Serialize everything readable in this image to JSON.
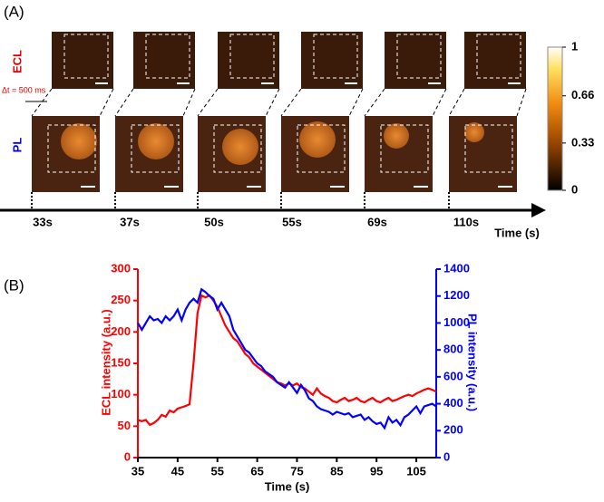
{
  "panel_a": {
    "label": "(A)",
    "row_top": "ECL",
    "row_bottom": "PL",
    "interval": "Δt = 500 ms",
    "times": [
      "33s",
      "37s",
      "50s",
      "55s",
      "69s",
      "110s"
    ],
    "time_axis": "Time (s)",
    "colorbar": {
      "ticks": [
        1,
        0.66,
        0.33,
        0
      ]
    }
  },
  "chart_data": {
    "type": "line",
    "panel_label": "(B)",
    "x_label": "Time (s)",
    "y_label": "ECL intensity (a.u.)",
    "y2_label": "PL intensity (a.u.)",
    "x": [
      35,
      36,
      37,
      38,
      39,
      40,
      41,
      42,
      43,
      44,
      45,
      46,
      47,
      48,
      49,
      50,
      51,
      52,
      53,
      54,
      55,
      56,
      57,
      58,
      59,
      60,
      61,
      62,
      63,
      64,
      65,
      66,
      67,
      68,
      69,
      70,
      71,
      72,
      73,
      74,
      75,
      76,
      77,
      78,
      79,
      80,
      81,
      82,
      83,
      84,
      85,
      86,
      87,
      88,
      89,
      90,
      91,
      92,
      93,
      94,
      95,
      96,
      97,
      98,
      99,
      100,
      101,
      102,
      103,
      104,
      105,
      106,
      107,
      108,
      109,
      110
    ],
    "xlim": [
      35,
      110
    ],
    "xticks": [
      35,
      45,
      55,
      65,
      75,
      85,
      95,
      105
    ],
    "ylim": [
      0,
      300
    ],
    "yticks": [
      0,
      50,
      100,
      150,
      200,
      250,
      300
    ],
    "y2lim": [
      0,
      1400
    ],
    "y2ticks": [
      0,
      200,
      400,
      600,
      800,
      1000,
      1200,
      1400
    ],
    "series": [
      {
        "name": "ECL",
        "color": "#ff0000",
        "values": [
          60,
          58,
          60,
          52,
          55,
          60,
          68,
          65,
          75,
          72,
          78,
          80,
          82,
          85,
          150,
          230,
          258,
          255,
          258,
          250,
          240,
          225,
          210,
          200,
          190,
          185,
          175,
          165,
          160,
          150,
          145,
          140,
          135,
          130,
          125,
          120,
          118,
          115,
          118,
          115,
          118,
          112,
          110,
          105,
          100,
          110,
          102,
          98,
          95,
          90,
          88,
          92,
          95,
          90,
          92,
          95,
          90,
          88,
          92,
          95,
          90,
          88,
          92,
          95,
          90,
          92,
          95,
          98,
          100,
          98,
          102,
          105,
          108,
          110,
          108,
          105
        ]
      },
      {
        "name": "PL",
        "color": "#0000ff",
        "axis": "y2",
        "values": [
          1000,
          950,
          1000,
          1050,
          1020,
          1030,
          1000,
          1050,
          1020,
          1050,
          1100,
          1020,
          1100,
          1150,
          1180,
          1150,
          1250,
          1230,
          1200,
          1180,
          1100,
          1150,
          1100,
          1050,
          950,
          900,
          850,
          800,
          780,
          740,
          700,
          680,
          640,
          620,
          600,
          560,
          540,
          520,
          560,
          520,
          480,
          540,
          500,
          440,
          420,
          380,
          360,
          350,
          340,
          320,
          340,
          330,
          320,
          330,
          300,
          310,
          320,
          280,
          300,
          270,
          250,
          260,
          220,
          300,
          260,
          280,
          240,
          300,
          320,
          350,
          380,
          330,
          380,
          390,
          400,
          380
        ]
      }
    ]
  }
}
